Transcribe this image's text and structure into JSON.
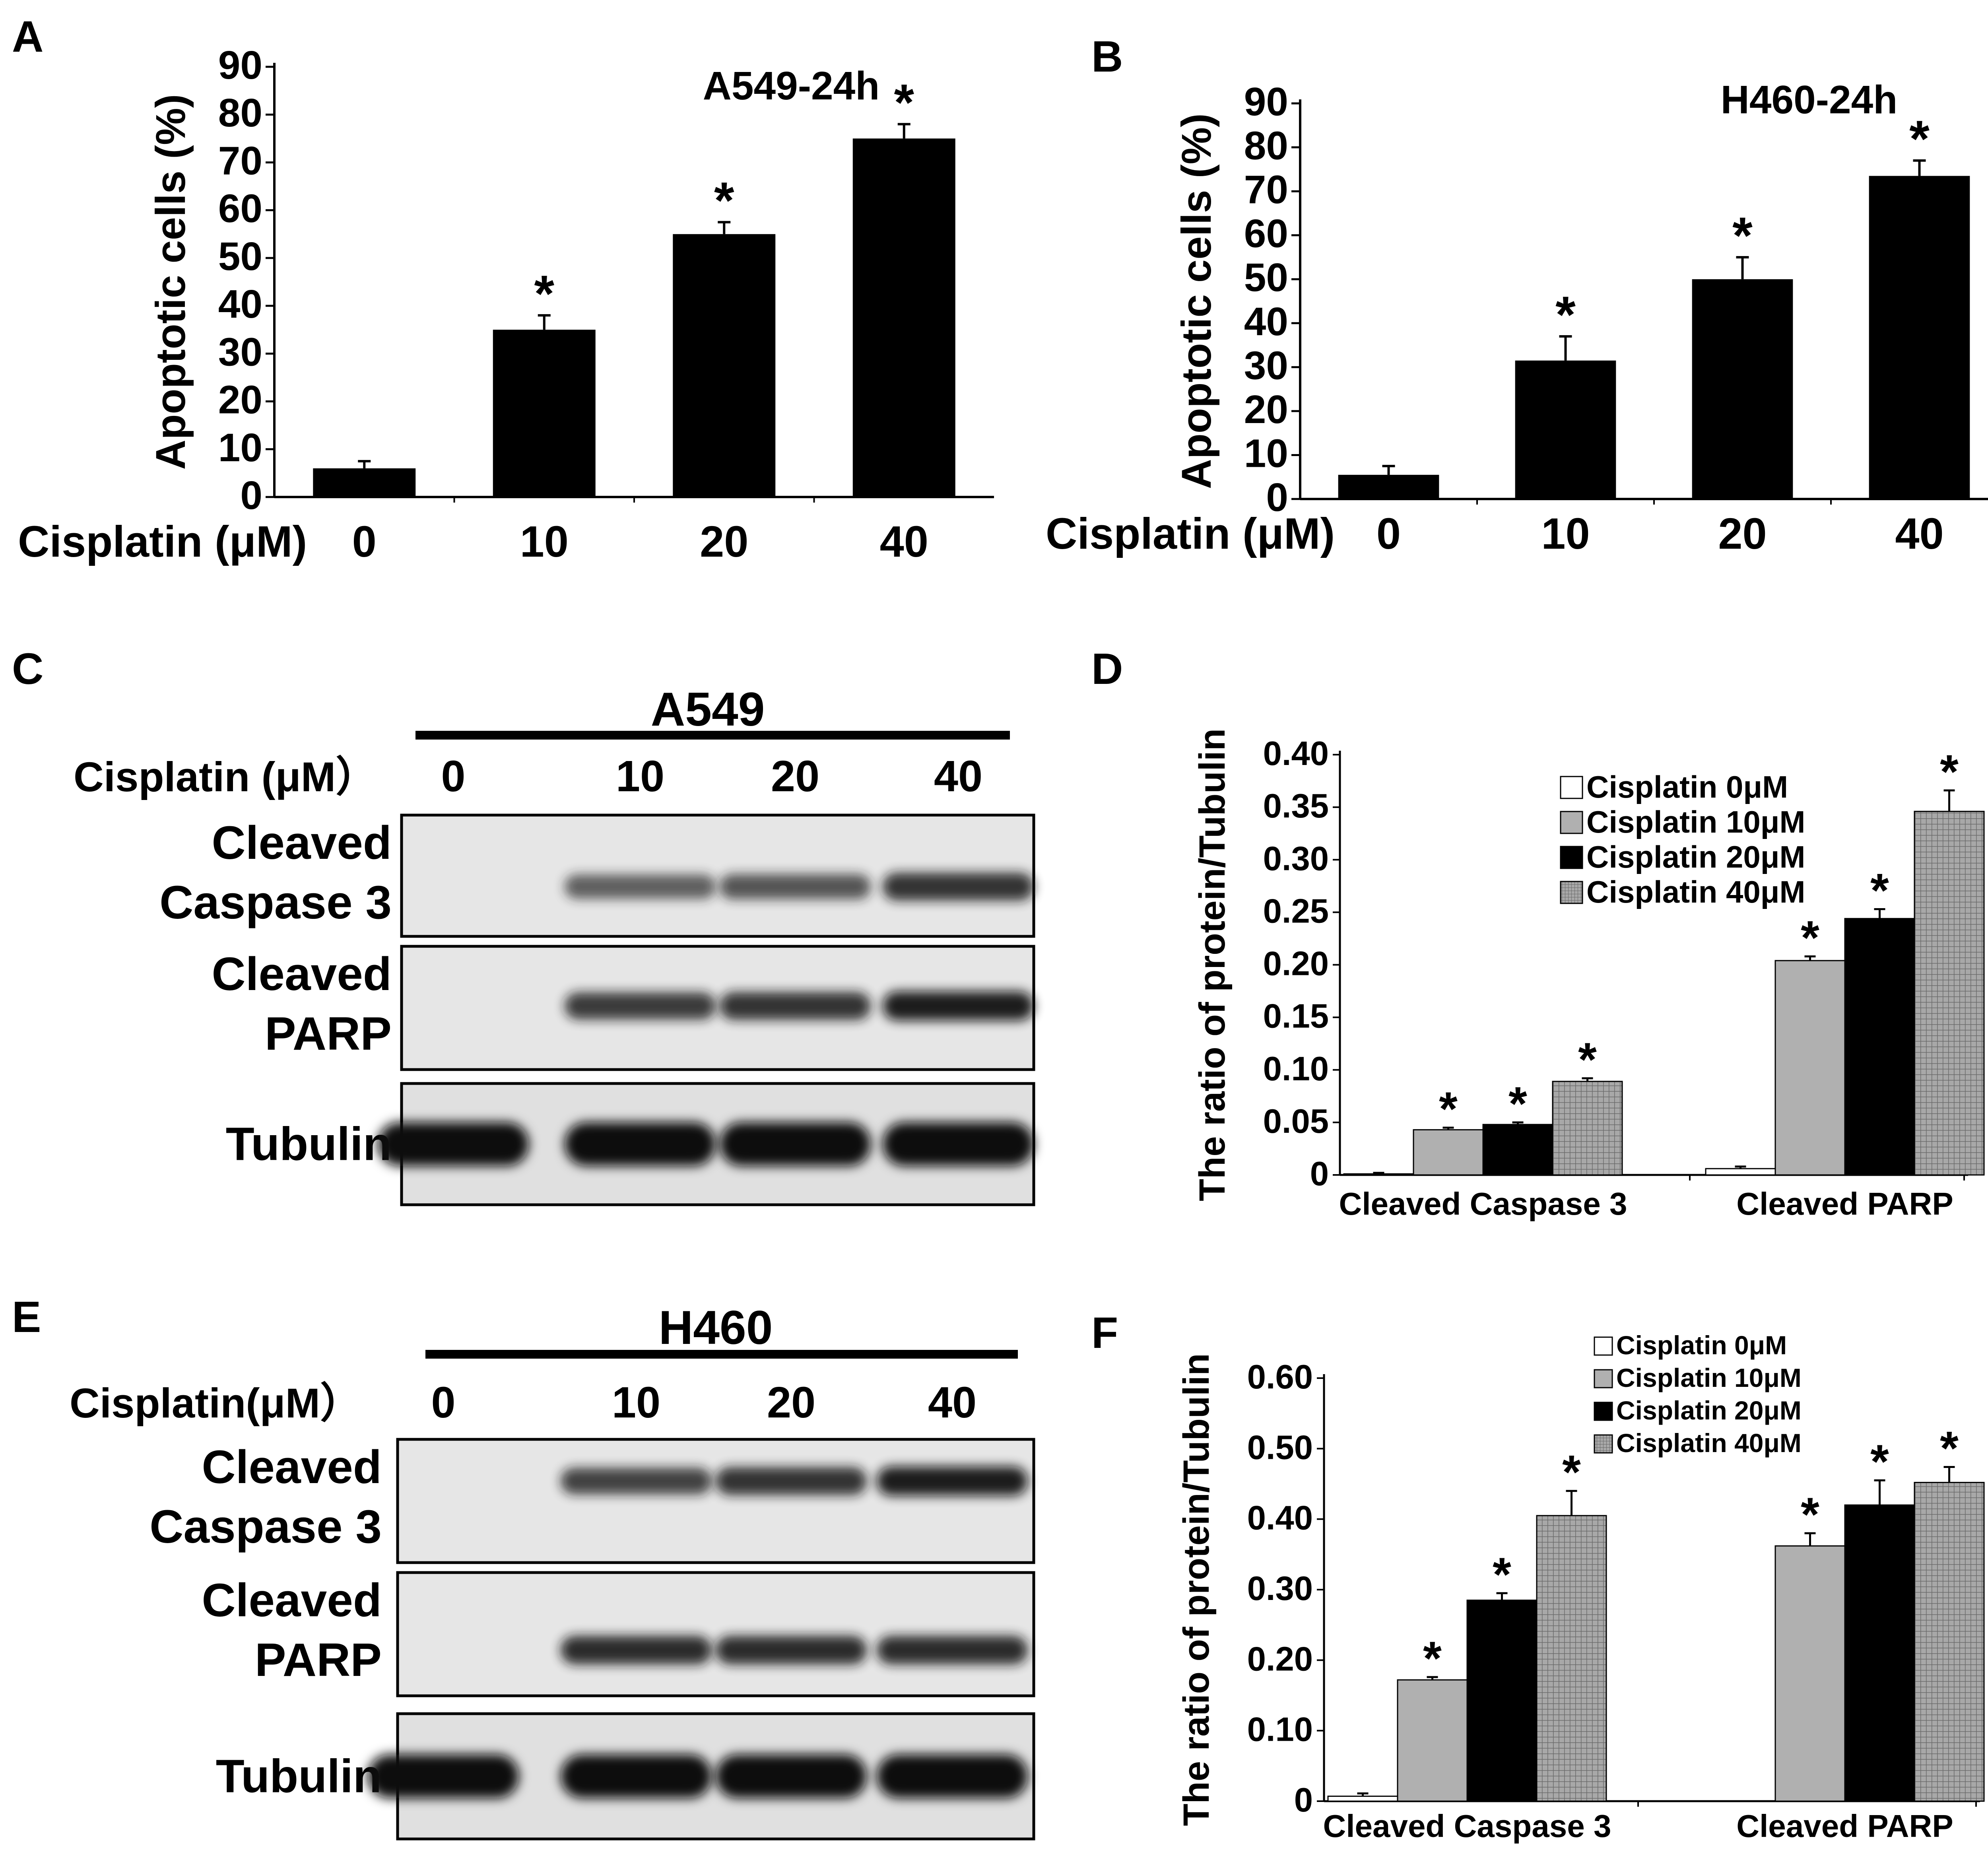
{
  "panel_letters": [
    "A",
    "B",
    "C",
    "D",
    "E",
    "F"
  ],
  "chart_data": [
    {
      "panel": "A",
      "type": "bar",
      "title": "A549-24h",
      "xlabel": "Cisplatin (μM)",
      "ylabel": "Apoptotic cells (%)",
      "categories": [
        "0",
        "10",
        "20",
        "40"
      ],
      "values": [
        6,
        35,
        55,
        75
      ],
      "errors": [
        1.5,
        3,
        2.5,
        3
      ],
      "significance": [
        "",
        "*",
        "*",
        "*"
      ],
      "ylim": [
        0,
        90
      ],
      "yticks": [
        "0",
        "10",
        "20",
        "30",
        "40",
        "50",
        "60",
        "70",
        "80",
        "90"
      ],
      "bar_color": "#000000"
    },
    {
      "panel": "B",
      "type": "bar",
      "title": "H460-24h",
      "xlabel": "Cisplatin (μM)",
      "ylabel": "Apoptotic cells (%)",
      "categories": [
        "0",
        "10",
        "20",
        "40"
      ],
      "values": [
        5.5,
        31.5,
        50,
        73.5
      ],
      "errors": [
        2,
        5.5,
        5,
        3.5
      ],
      "significance": [
        "",
        "*",
        "*",
        "*"
      ],
      "ylim": [
        0,
        90
      ],
      "yticks": [
        "0",
        "10",
        "20",
        "30",
        "40",
        "50",
        "60",
        "70",
        "80",
        "90"
      ],
      "bar_color": "#000000"
    },
    {
      "panel": "D",
      "type": "bar",
      "ylabel": "The ratio of protein/Tubulin",
      "categories": [
        "Cleaved Caspase 3",
        "Cleaved PARP"
      ],
      "ylim": [
        0,
        0.4
      ],
      "yticks": [
        "0",
        "0.05",
        "0.10",
        "0.15",
        "0.20",
        "0.25",
        "0.30",
        "0.35",
        "0.40"
      ],
      "legend_position": "top-right",
      "series": [
        {
          "name": "Cisplatin  0μM",
          "values": [
            0.001,
            0.006
          ],
          "errors": [
            0.001,
            0.002
          ],
          "significance": [
            "",
            ""
          ],
          "color": "#ffffff",
          "pattern": "none"
        },
        {
          "name": "Cisplatin 10μM",
          "values": [
            0.043,
            0.204
          ],
          "errors": [
            0.002,
            0.004
          ],
          "significance": [
            "*",
            "*"
          ],
          "color": "#b0b0b0",
          "pattern": "none"
        },
        {
          "name": "Cisplatin 20μM",
          "values": [
            0.048,
            0.244
          ],
          "errors": [
            0.002,
            0.009
          ],
          "significance": [
            "*",
            "*"
          ],
          "color": "#000000",
          "pattern": "none"
        },
        {
          "name": "Cisplatin 40μM",
          "values": [
            0.089,
            0.346
          ],
          "errors": [
            0.003,
            0.02
          ],
          "significance": [
            "*",
            "*"
          ],
          "color": "#9a9a9a",
          "pattern": "grid"
        }
      ]
    },
    {
      "panel": "F",
      "type": "bar",
      "ylabel": "The ratio of protein/Tubulin",
      "categories": [
        "Cleaved Caspase 3",
        "Cleaved PARP"
      ],
      "ylim": [
        0,
        0.6
      ],
      "yticks": [
        "0",
        "0.10",
        "0.20",
        "0.30",
        "0.40",
        "0.50",
        "0.60"
      ],
      "legend_position": "top-right",
      "series": [
        {
          "name": "Cisplatin   0μM",
          "values": [
            0.007,
            0
          ],
          "errors": [
            0.004,
            0
          ],
          "significance": [
            "",
            ""
          ],
          "color": "#ffffff",
          "pattern": "none"
        },
        {
          "name": "Cisplatin 10μM",
          "values": [
            0.172,
            0.362
          ],
          "errors": [
            0.004,
            0.018
          ],
          "significance": [
            "*",
            "*"
          ],
          "color": "#b0b0b0",
          "pattern": "none"
        },
        {
          "name": "Cisplatin 20μM",
          "values": [
            0.285,
            0.42
          ],
          "errors": [
            0.01,
            0.035
          ],
          "significance": [
            "*",
            "*"
          ],
          "color": "#000000",
          "pattern": "none"
        },
        {
          "name": "Cisplatin 40μM",
          "values": [
            0.405,
            0.452
          ],
          "errors": [
            0.035,
            0.022
          ],
          "significance": [
            "*",
            "*"
          ],
          "color": "#9a9a9a",
          "pattern": "grid"
        }
      ]
    }
  ],
  "blots": [
    {
      "panel": "C",
      "cell_line": "A549",
      "treatment_label": "Cisplatin (μM）",
      "lanes": [
        "0",
        "10",
        "20",
        "40"
      ],
      "rows": [
        {
          "label_lines": [
            "Cleaved",
            "Caspase 3"
          ],
          "intensities": [
            0,
            0.55,
            0.6,
            0.8
          ]
        },
        {
          "label_lines": [
            "Cleaved",
            "PARP"
          ],
          "intensities": [
            0,
            0.75,
            0.8,
            0.9
          ]
        },
        {
          "label_lines": [
            "Tubulin"
          ],
          "intensities": [
            1,
            1,
            1,
            1
          ]
        }
      ]
    },
    {
      "panel": "E",
      "cell_line": "H460",
      "treatment_label": "Cisplatin(μM）",
      "lanes": [
        "0",
        "10",
        "20",
        "40"
      ],
      "rows": [
        {
          "label_lines": [
            "Cleaved",
            "Caspase 3"
          ],
          "intensities": [
            0,
            0.7,
            0.8,
            0.9
          ]
        },
        {
          "label_lines": [
            "Cleaved",
            "PARP"
          ],
          "intensities": [
            0,
            0.85,
            0.85,
            0.85
          ]
        },
        {
          "label_lines": [
            "Tubulin"
          ],
          "intensities": [
            1,
            1,
            1,
            1
          ]
        }
      ]
    }
  ]
}
